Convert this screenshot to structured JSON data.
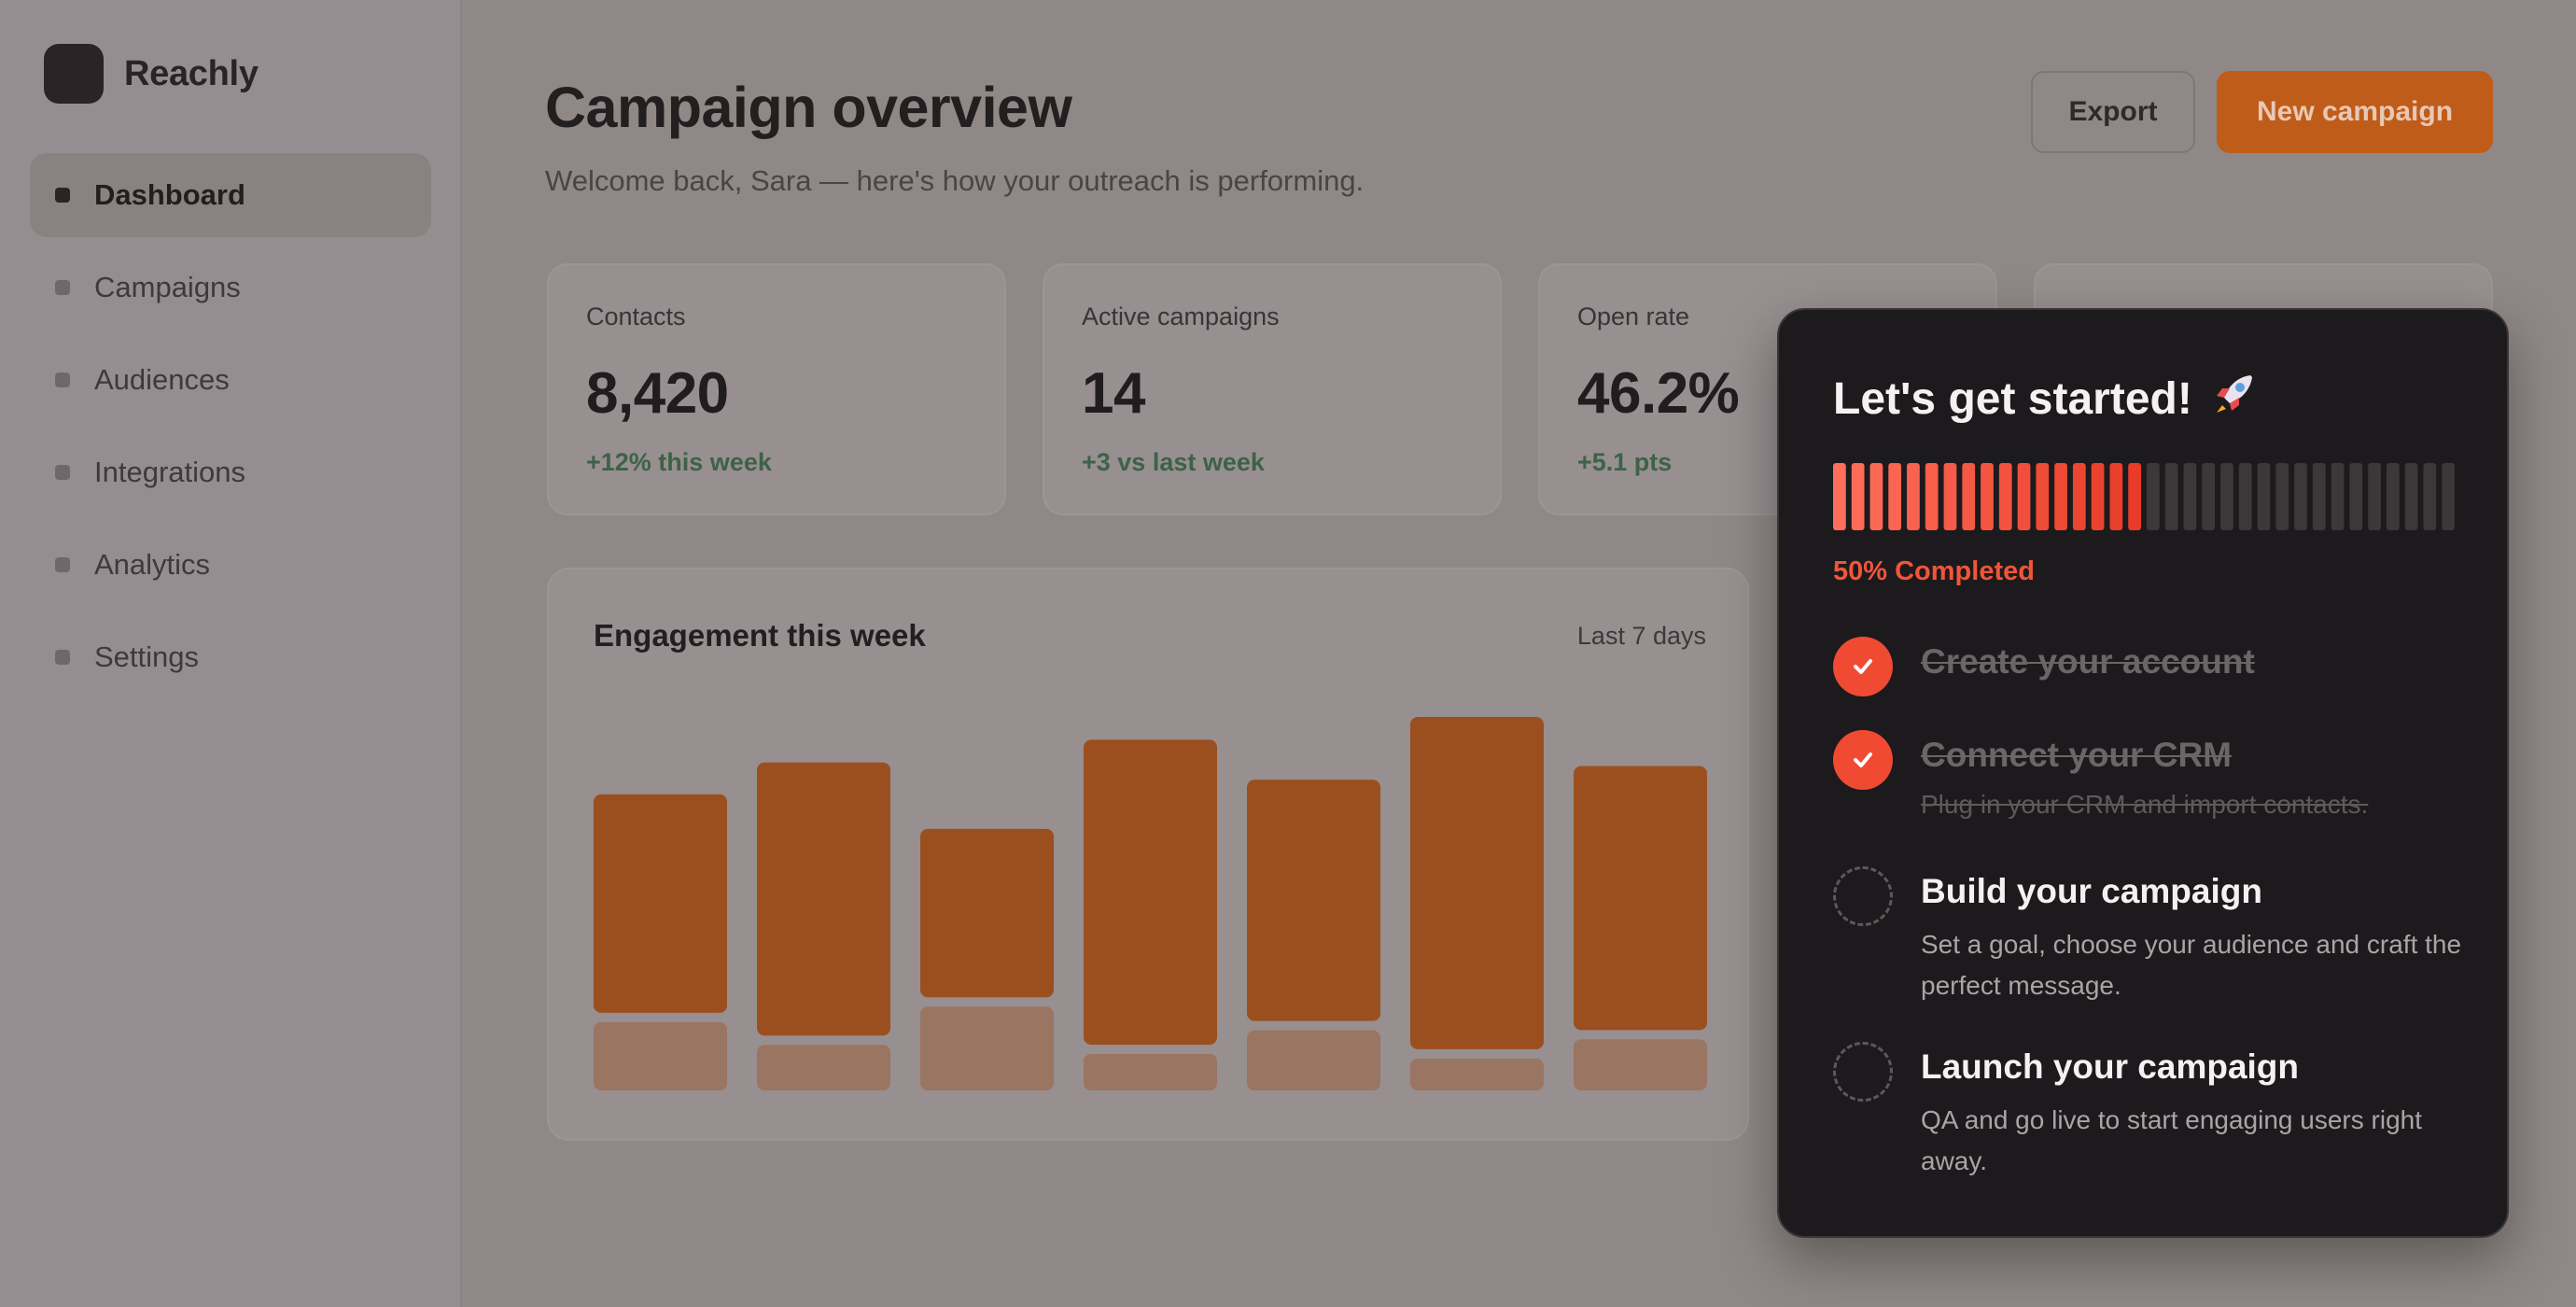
{
  "app": {
    "name": "Reachly"
  },
  "sidebar": {
    "items": [
      {
        "label": "Dashboard",
        "active": true
      },
      {
        "label": "Campaigns",
        "active": false
      },
      {
        "label": "Audiences",
        "active": false
      },
      {
        "label": "Integrations",
        "active": false
      },
      {
        "label": "Analytics",
        "active": false
      },
      {
        "label": "Settings",
        "active": false
      }
    ]
  },
  "header": {
    "title": "Campaign overview",
    "subtitle": "Welcome back, Sara — here's how your outreach is performing.",
    "export_label": "Export",
    "new_campaign_label": "New campaign"
  },
  "stats": [
    {
      "label": "Contacts",
      "value": "8,420",
      "delta": "+12% this week"
    },
    {
      "label": "Active campaigns",
      "value": "14",
      "delta": "+3 vs last week"
    },
    {
      "label": "Open rate",
      "value": "46.2%",
      "delta": "+5.1 pts"
    }
  ],
  "chart": {
    "title": "Engagement this week",
    "range_label": "Last 7 days"
  },
  "chart_data": {
    "type": "bar",
    "stacked": true,
    "categories": [
      "",
      "",
      "",
      "",
      "",
      "",
      ""
    ],
    "series": [
      {
        "values": [
          240,
          300,
          185,
          335,
          265,
          365,
          290
        ]
      },
      {
        "values": [
          75,
          50,
          92,
          40,
          66,
          35,
          56
        ]
      }
    ],
    "colors": [
      "#9b4f1e",
      "#9a7562"
    ],
    "grid": false,
    "legend": "none"
  },
  "onboarding": {
    "title": "Let's get started!",
    "rocket_icon": "rocket-icon",
    "progress_percent": 50,
    "progress_segments": 34,
    "progress_label": "50% Completed",
    "tasks": [
      {
        "title": "Create your account",
        "description": "",
        "done": true
      },
      {
        "title": "Connect your CRM",
        "description": "Plug in your CRM and import contacts.",
        "done": true
      },
      {
        "title": "Build your campaign",
        "description": "Set a goal, choose your audience and craft the perfect message.",
        "done": false
      },
      {
        "title": "Launch your campaign",
        "description": "QA and go live to start engaging users right away.",
        "done": false
      }
    ]
  },
  "colors": {
    "accent": "#c05c1a",
    "progress_active": "#f04a33",
    "progress_inactive": "#3b3839",
    "panel_bg": "#1c1a1c"
  }
}
